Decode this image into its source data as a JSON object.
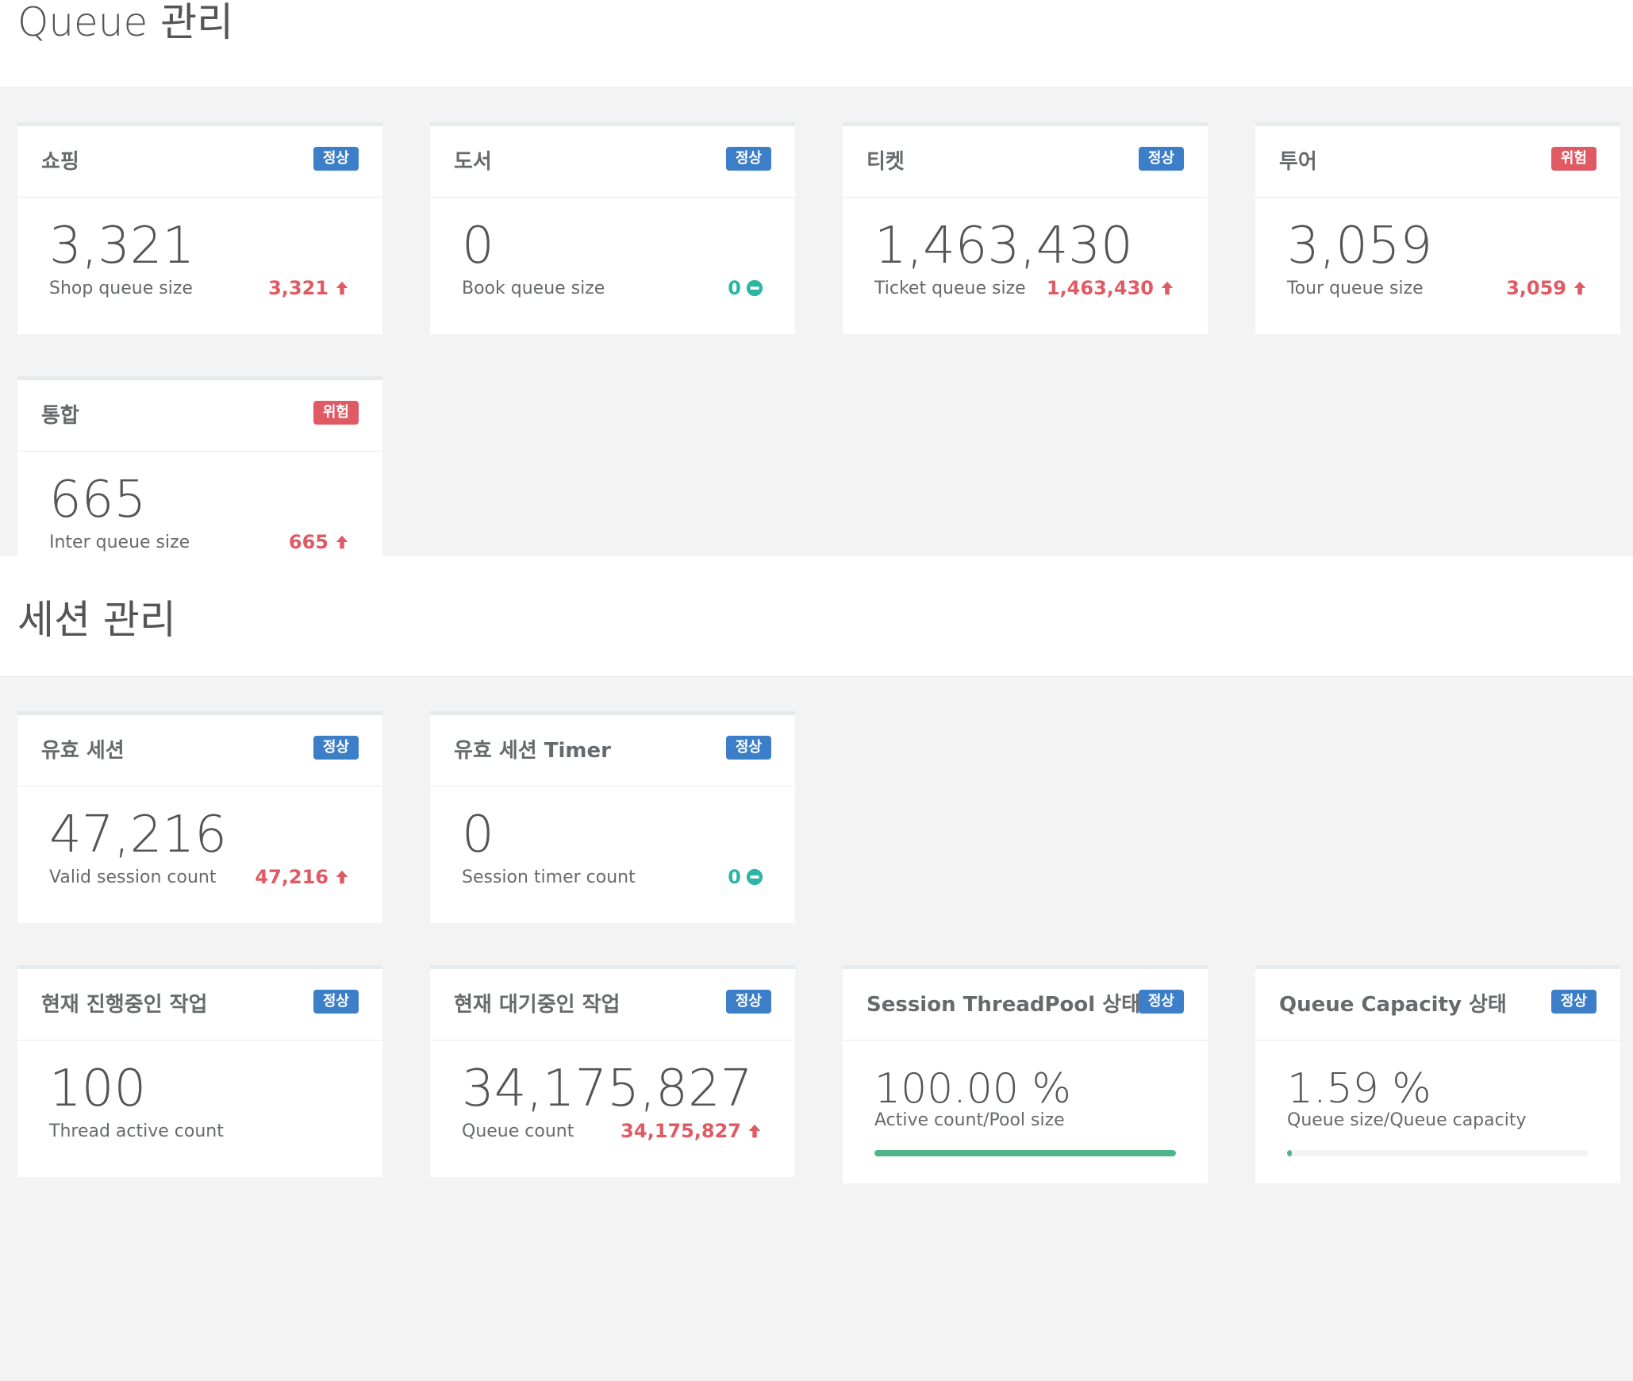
{
  "queue_section": {
    "title": "Queue 관리",
    "cards": [
      {
        "title": "쇼핑",
        "badge": "정상",
        "value": "3,321",
        "label": "Shop queue size",
        "stat": "3,321"
      },
      {
        "title": "도서",
        "badge": "정상",
        "value": "0",
        "label": "Book queue size",
        "stat": "0"
      },
      {
        "title": "티켓",
        "badge": "정상",
        "value": "1,463,430",
        "label": "Ticket queue size",
        "stat": "1,463,430"
      },
      {
        "title": "투어",
        "badge": "위험",
        "value": "3,059",
        "label": "Tour queue size",
        "stat": "3,059"
      },
      {
        "title": "통합",
        "badge": "위험",
        "value": "665",
        "label": "Inter queue size",
        "stat": "665"
      }
    ]
  },
  "session_section": {
    "title": "세션 관리",
    "cards": [
      {
        "title": "유효 세션",
        "badge": "정상",
        "value": "47,216",
        "label": "Valid session count",
        "stat": "47,216"
      },
      {
        "title": "유효 세션 Timer",
        "badge": "정상",
        "value": "0",
        "label": "Session timer count",
        "stat": "0"
      },
      {
        "title": "현재 진행중인 작업",
        "badge": "정상",
        "value": "100",
        "label": "Thread active count"
      },
      {
        "title": "현재 대기중인 작업",
        "badge": "정상",
        "value": "34,175,827",
        "label": "Queue count",
        "stat": "34,175,827"
      },
      {
        "title": "Session ThreadPool 상태",
        "badge": "정상",
        "value": "100.00 %",
        "label": "Active count/Pool size",
        "progress": 1.0
      },
      {
        "title": "Queue Capacity 상태",
        "badge": "정상",
        "value": "1.59 %",
        "label": "Queue size/Queue capacity",
        "progress": 0.0159
      }
    ]
  },
  "colors": {
    "badge_normal": "#3d7ec8",
    "badge_danger": "#e05a63",
    "stat_up": "#e05a63",
    "stat_flat": "#2cb5a4",
    "progress": "#4eb588"
  },
  "icons": {
    "stat_up": "arrow-up-icon",
    "stat_flat": "minus-circle-icon"
  }
}
